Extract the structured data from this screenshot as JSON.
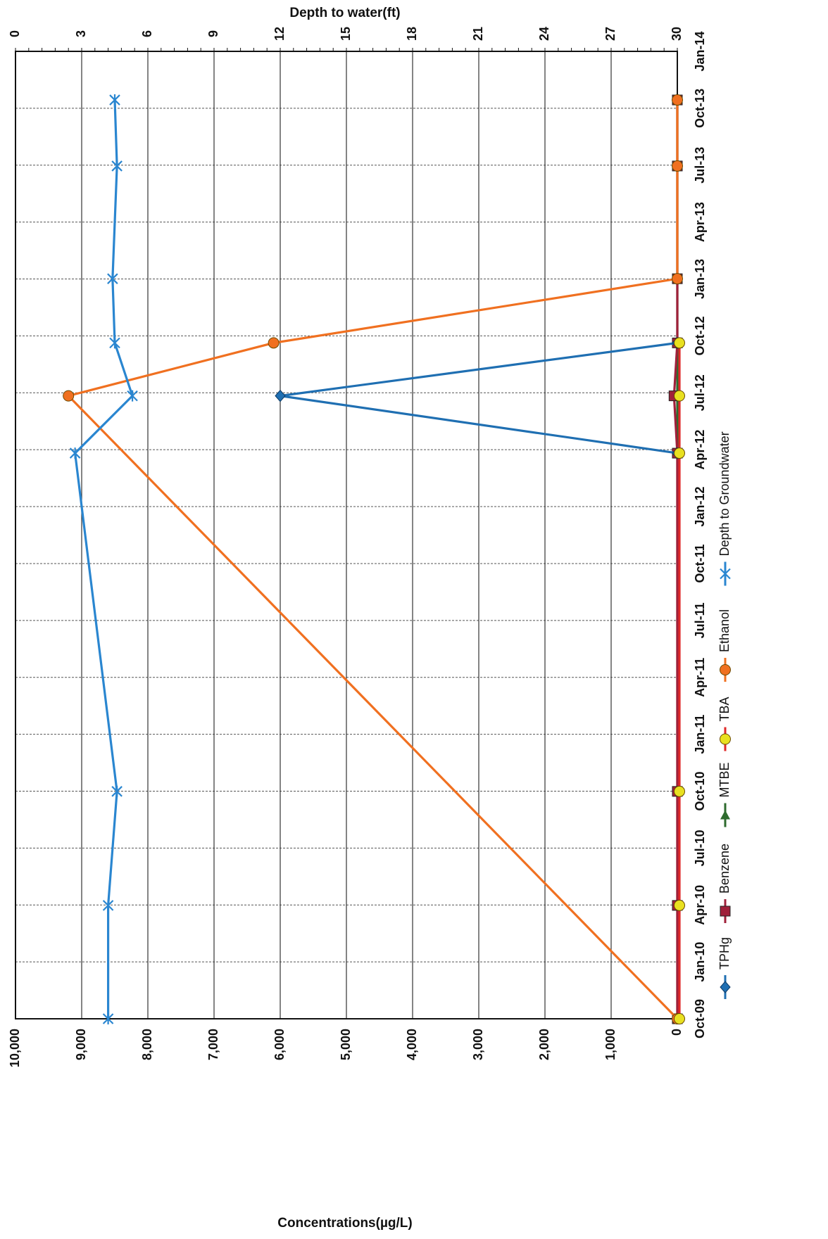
{
  "chart_data": {
    "type": "line",
    "orientation": "rotated-90-clockwise",
    "x_axis": {
      "label": "",
      "range": [
        "2009-10-01",
        "2014-01-01"
      ],
      "tick_labels": [
        "Oct-09",
        "Jan-10",
        "Apr-10",
        "Jul-10",
        "Oct-10",
        "Jan-11",
        "Apr-11",
        "Jul-11",
        "Oct-11",
        "Jan-12",
        "Apr-12",
        "Jul-12",
        "Oct-12",
        "Jan-13",
        "Apr-13",
        "Jul-13",
        "Oct-13",
        "Jan-14"
      ]
    },
    "y_axis_primary": {
      "label": "Concentrations(µg/L)",
      "range": [
        0,
        10000
      ],
      "tick_labels": [
        "0",
        "1,000",
        "2,000",
        "3,000",
        "4,000",
        "5,000",
        "6,000",
        "7,000",
        "8,000",
        "9,000",
        "10,000"
      ]
    },
    "y_axis_secondary": {
      "label": "Depth to water(ft)",
      "range": [
        0,
        30
      ],
      "reversed": true,
      "tick_labels": [
        "0",
        "3",
        "6",
        "9",
        "12",
        "15",
        "18",
        "21",
        "24",
        "27",
        "30"
      ]
    },
    "grid": true,
    "legend_position": "right",
    "series": [
      {
        "name": "TPHg",
        "axis": "primary",
        "color": "#1f6fb2",
        "marker": "diamond",
        "x": [
          "2012-03-27",
          "2012-06-27",
          "2012-09-20"
        ],
        "y": [
          0,
          6000,
          0
        ]
      },
      {
        "name": "Benzene",
        "axis": "primary",
        "color": "#a0203a",
        "marker": "square",
        "x": [
          "2009-10-01",
          "2010-04-01",
          "2010-10-01",
          "2012-03-27",
          "2012-06-27",
          "2012-09-20",
          "2013-01-01",
          "2013-07-01",
          "2013-10-15"
        ],
        "y": [
          0,
          0,
          0,
          0,
          50,
          0,
          0,
          0,
          0
        ]
      },
      {
        "name": "MTBE",
        "axis": "primary",
        "color": "#2e6b2e",
        "marker": "triangle",
        "x": [
          "2009-10-01",
          "2010-04-01",
          "2010-10-01",
          "2012-03-27",
          "2012-06-27",
          "2012-09-20",
          "2013-01-01",
          "2013-07-01",
          "2013-10-15"
        ],
        "y": [
          0,
          0,
          0,
          0,
          0,
          0,
          0,
          0,
          0
        ]
      },
      {
        "name": "TBA",
        "axis": "primary",
        "color": "#e8e020",
        "line_color": "#e02828",
        "marker": "circle",
        "x": [
          "2009-10-01",
          "2010-04-01",
          "2010-10-01",
          "2012-03-27",
          "2012-06-27",
          "2012-09-20"
        ],
        "y": [
          0,
          0,
          0,
          0,
          0,
          0
        ]
      },
      {
        "name": "Ethanol",
        "axis": "primary",
        "color": "#f07020",
        "marker": "circle",
        "x": [
          "2009-10-01",
          "2012-06-27",
          "2012-09-20",
          "2013-01-01",
          "2013-07-01",
          "2013-10-15"
        ],
        "y": [
          0,
          9200,
          6100,
          0,
          0,
          0
        ]
      },
      {
        "name": "Depth to Groundwater",
        "axis": "secondary",
        "color": "#2a86d0",
        "marker": "star",
        "x": [
          "2009-10-01",
          "2010-04-01",
          "2010-10-01",
          "2012-03-27",
          "2012-06-27",
          "2012-09-20",
          "2013-01-01",
          "2013-07-01",
          "2013-10-15"
        ],
        "y": [
          4.2,
          4.2,
          4.6,
          2.7,
          5.3,
          4.5,
          4.4,
          4.6,
          4.5
        ]
      }
    ]
  }
}
